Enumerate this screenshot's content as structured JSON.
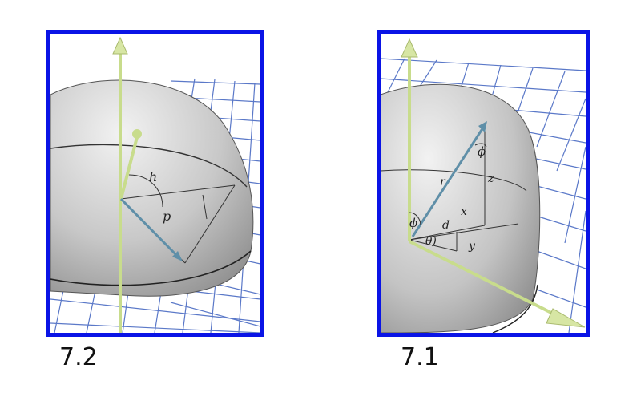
{
  "figures": [
    {
      "caption": "7.2",
      "labels": {
        "h": "h",
        "p": "p"
      }
    },
    {
      "caption": "7.1",
      "labels": {
        "phi_top": "ϕ",
        "phi_bottom": "ϕ",
        "r": "r",
        "z": "z",
        "x": "x",
        "d": "d",
        "y": "y",
        "theta": "θ)"
      }
    }
  ],
  "colors": {
    "frame": "#0a14e6",
    "grid": "#5a78c8",
    "axis": "#c8dc8c",
    "vector": "#5f8fa8",
    "dome": "#bdbdbd"
  }
}
